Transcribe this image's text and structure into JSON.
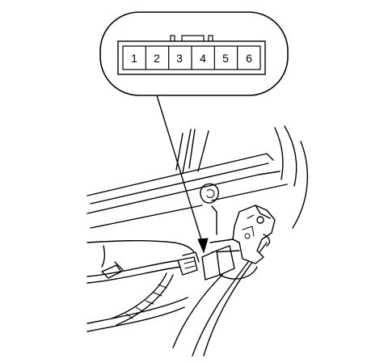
{
  "connector": {
    "pins": [
      "1",
      "2",
      "3",
      "4",
      "5",
      "6"
    ]
  },
  "colors": {
    "line": "#000000",
    "background": "#ffffff"
  }
}
